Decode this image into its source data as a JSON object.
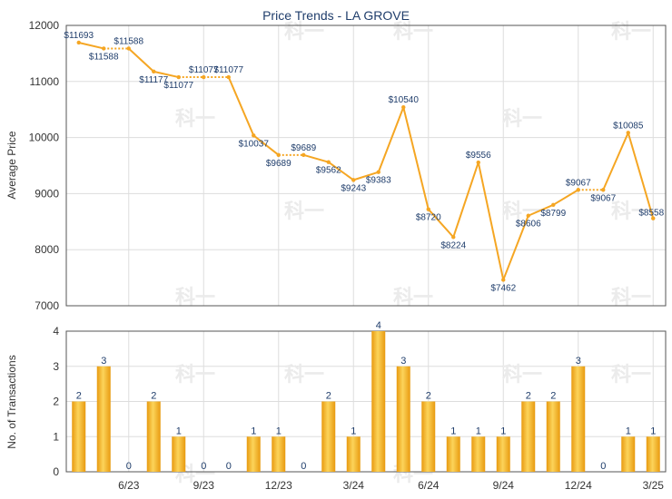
{
  "chart_data": [
    {
      "type": "line",
      "title": "Price Trends - LA GROVE",
      "ylabel": "Average Price",
      "ylim": [
        7000,
        12000
      ],
      "yticks": [
        7000,
        8000,
        9000,
        10000,
        11000,
        12000
      ],
      "grid": true,
      "series": [
        {
          "color": "#f5a623",
          "values": [
            11693,
            11588,
            11588,
            11177,
            11077,
            11077,
            11077,
            10037,
            9689,
            9689,
            9562,
            9243,
            9383,
            10540,
            8720,
            8224,
            9556,
            7462,
            8606,
            8799,
            9067,
            9067,
            10085,
            8558
          ],
          "labels": [
            "$11693",
            "$11588",
            "$11588",
            "$11177",
            "$11077",
            "$11077",
            "$11077",
            "$10037",
            "$9689",
            "$9689",
            "$9562",
            "$9243",
            "$9383",
            "$10540",
            "$8720",
            "$8224",
            "$9556",
            "$7462",
            "$8606",
            "$8799",
            "$9067",
            "$9067",
            "$10085",
            "$8558"
          ]
        }
      ]
    },
    {
      "type": "bar",
      "ylabel": "No. of Transactions",
      "ylim": [
        0,
        4
      ],
      "yticks": [
        0,
        1,
        2,
        3,
        4
      ],
      "grid": true,
      "xtick_labels": [
        "6/23",
        "9/23",
        "12/23",
        "3/24",
        "6/24",
        "9/24",
        "12/24",
        "3/25"
      ],
      "series": [
        {
          "color": "#f0a818",
          "values": [
            2,
            3,
            0,
            2,
            1,
            0,
            0,
            1,
            1,
            0,
            2,
            1,
            4,
            3,
            2,
            1,
            1,
            1,
            2,
            2,
            3,
            0,
            1,
            1
          ]
        }
      ]
    }
  ],
  "watermark": "科一"
}
